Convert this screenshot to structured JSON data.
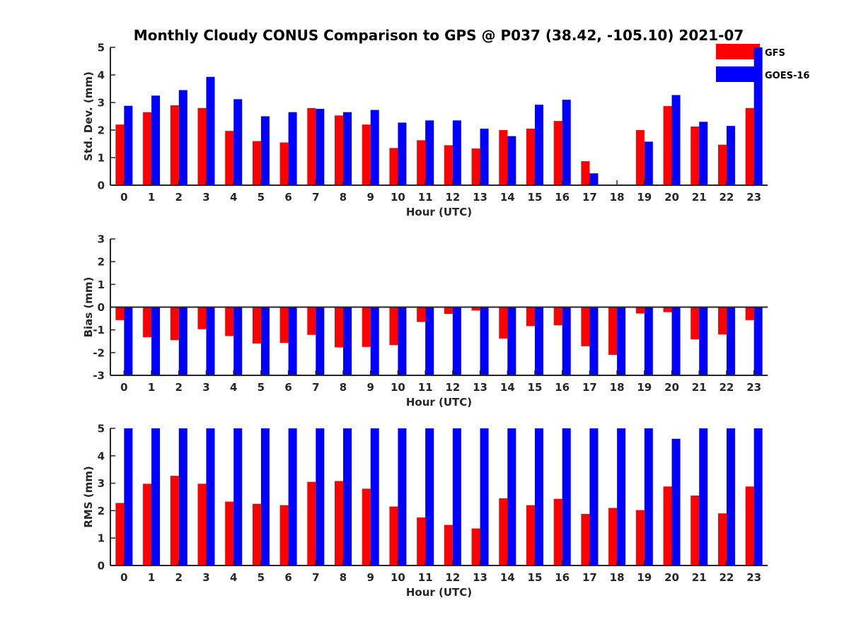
{
  "colors": {
    "gfs": "#ff0000",
    "goes": "#0000ff",
    "axis": "#262626"
  },
  "legend": {
    "gfs": "GFS",
    "goes": "GOES-16"
  },
  "chart_data": {
    "title": "Monthly Cloudy CONUS Comparison to GPS @ P037 (38.42, -105.10) 2021-07",
    "categories": [
      "0",
      "1",
      "2",
      "3",
      "4",
      "5",
      "6",
      "7",
      "8",
      "9",
      "10",
      "11",
      "12",
      "13",
      "14",
      "15",
      "16",
      "17",
      "18",
      "19",
      "20",
      "21",
      "22",
      "23"
    ],
    "panels": [
      {
        "type": "bar",
        "ylabel": "Std. Dev. (mm)",
        "xlabel": "Hour (UTC)",
        "ylim": [
          0,
          5
        ],
        "yticks": [
          "0",
          "1",
          "2",
          "3",
          "4",
          "5"
        ],
        "series": [
          {
            "name": "GFS",
            "values": [
              2.2,
              2.65,
              2.9,
              2.8,
              1.97,
              1.6,
              1.55,
              2.8,
              2.53,
              2.2,
              1.35,
              1.63,
              1.45,
              1.33,
              2.0,
              2.05,
              2.33,
              0.87,
              0,
              2.0,
              2.87,
              2.13,
              1.47,
              2.8
            ]
          },
          {
            "name": "GOES-16",
            "values": [
              2.88,
              3.25,
              3.45,
              3.93,
              3.12,
              2.5,
              2.65,
              2.77,
              2.65,
              2.73,
              2.27,
              2.35,
              2.35,
              2.05,
              1.78,
              2.92,
              3.1,
              0.43,
              0,
              1.58,
              3.27,
              2.3,
              2.15,
              5.0
            ]
          }
        ]
      },
      {
        "type": "bar",
        "ylabel": "Bias (mm)",
        "xlabel": "Hour (UTC)",
        "ylim": [
          -3,
          3
        ],
        "yticks": [
          "-3",
          "-2",
          "-1",
          "0",
          "1",
          "2",
          "3"
        ],
        "series": [
          {
            "name": "GFS",
            "values": [
              -0.57,
              -1.32,
              -1.45,
              -0.97,
              -1.27,
              -1.6,
              -1.57,
              -1.22,
              -1.77,
              -1.75,
              -1.67,
              -0.65,
              -0.3,
              -0.15,
              -1.38,
              -0.83,
              -0.8,
              -1.72,
              -2.1,
              -0.28,
              -0.22,
              -1.42,
              -1.2,
              -0.57
            ]
          },
          {
            "name": "GOES-16",
            "values": [
              -3,
              -3,
              -3,
              -3,
              -3,
              -3,
              -3,
              -3,
              -3,
              -3,
              -3,
              -3,
              -3,
              -3,
              -3,
              -3,
              -3,
              -3,
              -3,
              -3,
              -3,
              -3,
              -3,
              -3
            ]
          }
        ]
      },
      {
        "type": "bar",
        "ylabel": "RMS (mm)",
        "xlabel": "Hour (UTC)",
        "ylim": [
          0,
          5
        ],
        "yticks": [
          "0",
          "1",
          "2",
          "3",
          "4",
          "5"
        ],
        "series": [
          {
            "name": "GFS",
            "values": [
              2.28,
              2.98,
              3.27,
              2.98,
              2.33,
              2.25,
              2.2,
              3.05,
              3.08,
              2.8,
              2.15,
              1.75,
              1.48,
              1.35,
              2.45,
              2.2,
              2.43,
              1.88,
              2.1,
              2.02,
              2.88,
              2.55,
              1.9,
              2.88
            ]
          },
          {
            "name": "GOES-16",
            "values": [
              5,
              5,
              5,
              5,
              5,
              5,
              5,
              5,
              5,
              5,
              5,
              5,
              5,
              5,
              5,
              5,
              5,
              5,
              5,
              5,
              4.62,
              5,
              5,
              5
            ]
          }
        ]
      }
    ]
  }
}
